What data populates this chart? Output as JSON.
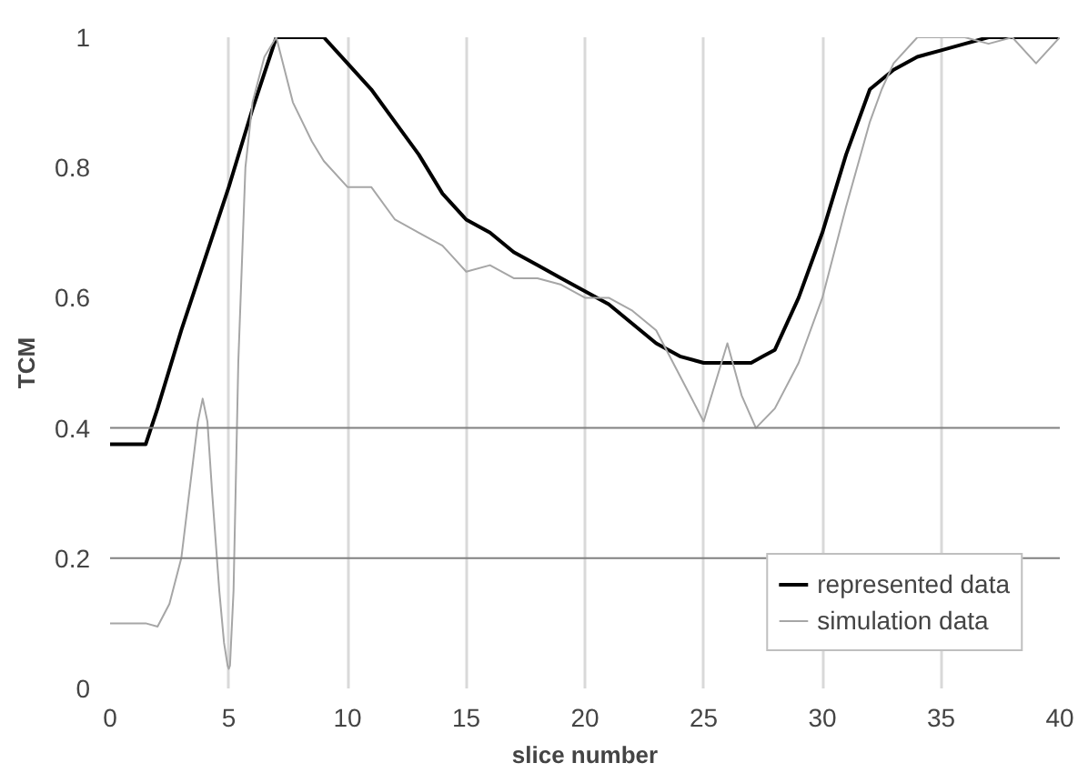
{
  "chart_data": {
    "type": "line",
    "xlabel": "slice number",
    "ylabel": "TCM",
    "xlim": [
      0,
      40
    ],
    "xticks": [
      0,
      5,
      10,
      15,
      20,
      25,
      30,
      35,
      40
    ],
    "ylim": [
      0,
      1
    ],
    "yticks": [
      0,
      0.2,
      0.4,
      0.6,
      0.8,
      1
    ],
    "grid": "x",
    "legend": "bottom right",
    "line_style": "solid",
    "marker": "none",
    "ref_lines": [
      {
        "axis": "y",
        "value": 0.2,
        "label": null,
        "color": "#808080"
      },
      {
        "axis": "y",
        "value": 0.4,
        "label": null,
        "color": "#808080"
      }
    ],
    "series": [
      {
        "name": "represented data",
        "color": "#000000",
        "x": [
          0,
          1.5,
          2,
          3,
          4,
          5,
          6,
          7,
          8,
          9,
          10,
          11,
          12,
          13,
          14,
          15,
          16,
          17,
          18,
          19,
          20,
          21,
          22,
          23,
          24,
          25,
          26,
          27,
          27.5,
          28,
          29,
          30,
          31,
          32,
          33,
          34,
          35,
          36,
          37,
          38,
          39,
          40
        ],
        "values": [
          0.375,
          0.375,
          0.43,
          0.55,
          0.66,
          0.77,
          0.89,
          1,
          1,
          1,
          0.96,
          0.92,
          0.87,
          0.82,
          0.76,
          0.72,
          0.7,
          0.67,
          0.65,
          0.63,
          0.61,
          0.59,
          0.56,
          0.53,
          0.51,
          0.5,
          0.5,
          0.5,
          0.51,
          0.52,
          0.6,
          0.7,
          0.82,
          0.92,
          0.95,
          0.97,
          0.98,
          0.99,
          1,
          1,
          1,
          1
        ]
      },
      {
        "name": "simulation data",
        "color": "#a6a6a6",
        "x": [
          0,
          1.5,
          2,
          2.5,
          3,
          3.5,
          3.7,
          3.9,
          4.1,
          4.3,
          4.6,
          4.8,
          4.95,
          5,
          5.05,
          5.2,
          5.4,
          5.7,
          6,
          6.5,
          7,
          7.7,
          8.5,
          9,
          10,
          11,
          12,
          13,
          14,
          14.5,
          15,
          16,
          17,
          18,
          19,
          20,
          21,
          22,
          23,
          24,
          25,
          25.5,
          26,
          26.6,
          27.2,
          28,
          29,
          30,
          31,
          32,
          32.5,
          33,
          34,
          35,
          36,
          37,
          38,
          39,
          40
        ],
        "values": [
          0.1,
          0.1,
          0.095,
          0.13,
          0.2,
          0.35,
          0.41,
          0.445,
          0.41,
          0.3,
          0.15,
          0.07,
          0.035,
          0.03,
          0.035,
          0.15,
          0.5,
          0.8,
          0.9,
          0.97,
          1,
          0.9,
          0.84,
          0.81,
          0.77,
          0.77,
          0.72,
          0.7,
          0.68,
          0.66,
          0.64,
          0.65,
          0.63,
          0.63,
          0.62,
          0.6,
          0.6,
          0.58,
          0.55,
          0.48,
          0.41,
          0.47,
          0.53,
          0.45,
          0.4,
          0.43,
          0.5,
          0.6,
          0.74,
          0.87,
          0.92,
          0.96,
          1,
          1,
          1,
          0.99,
          1,
          0.96,
          1
        ]
      }
    ]
  }
}
